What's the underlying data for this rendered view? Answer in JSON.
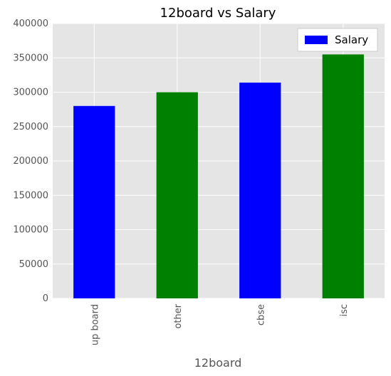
{
  "chart_data": {
    "type": "bar",
    "title": "12board vs Salary",
    "xlabel": "12board",
    "ylabel": "",
    "categories": [
      "up board",
      "other",
      "cbse",
      "isc"
    ],
    "series": [
      {
        "name": "Salary",
        "values": [
          280000,
          300000,
          314000,
          355000
        ]
      }
    ],
    "bar_colors": [
      "#0000ff",
      "#008000",
      "#0000ff",
      "#008000"
    ],
    "ylim": [
      0,
      400000
    ],
    "yticks": [
      0,
      50000,
      100000,
      150000,
      200000,
      250000,
      300000,
      350000,
      400000
    ],
    "grid": true,
    "legend_position": "top-right",
    "background_color": "#e5e5e5",
    "grid_color": "#ffffff"
  }
}
